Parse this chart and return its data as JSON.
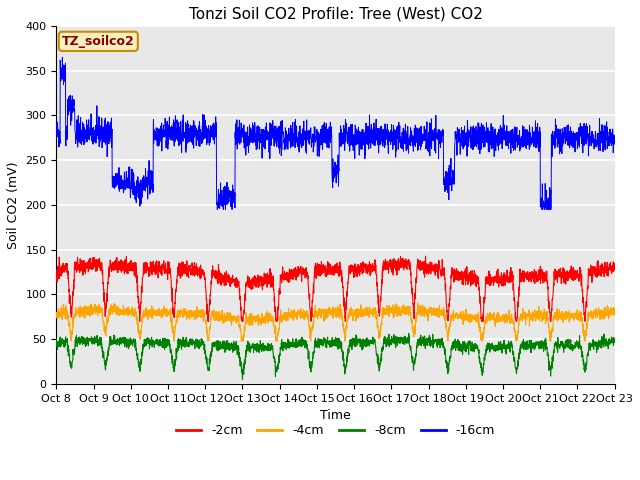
{
  "title": "Tonzi Soil CO2 Profile: Tree (West) CO2",
  "ylabel": "Soil CO2 (mV)",
  "xlabel": "Time",
  "legend_label": "TZ_soilco2",
  "series_labels": [
    "-2cm",
    "-4cm",
    "-8cm",
    "-16cm"
  ],
  "series_colors": [
    "red",
    "orange",
    "green",
    "blue"
  ],
  "ylim": [
    0,
    400
  ],
  "xtick_labels": [
    "Oct 8",
    "Oct 9",
    "Oct 10",
    "Oct 11",
    "Oct 12",
    "Oct 13",
    "Oct 14",
    "Oct 15",
    "Oct 16",
    "Oct 17",
    "Oct 18",
    "Oct 19",
    "Oct 20",
    "Oct 21",
    "Oct 22",
    "Oct 23"
  ],
  "n_points": 2880,
  "background_color": "#e8e8e8",
  "grid_color": "white",
  "title_fontsize": 11,
  "axis_fontsize": 9,
  "tick_fontsize": 8,
  "figsize": [
    6.4,
    4.8
  ],
  "dpi": 100
}
